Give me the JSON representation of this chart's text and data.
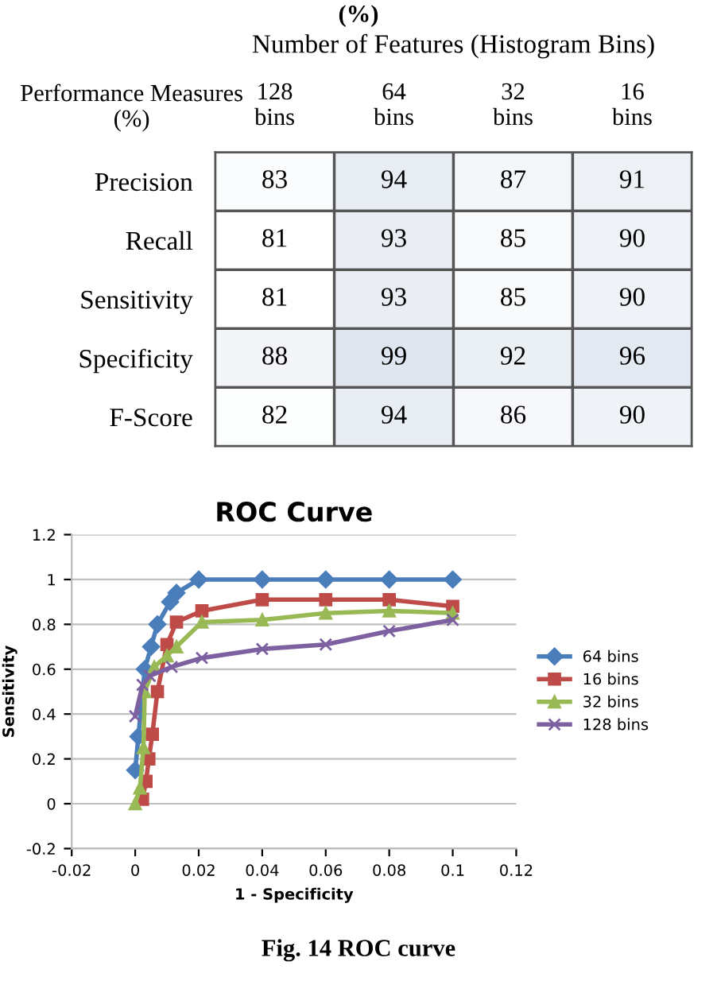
{
  "chart_data": [
    {
      "type": "heatmap",
      "title": "Number of Features (Histogram Bins)",
      "ylabel": "Performance Measures\n(%)",
      "categories": [
        "128\nbins",
        "64\nbins",
        "32\nbins",
        "16\nbins"
      ],
      "y_categories": [
        "Precision",
        "Recall",
        "Sensitivity",
        "Specificity",
        "F-Score"
      ],
      "cells": [
        [
          83,
          94,
          87,
          91
        ],
        [
          81,
          93,
          85,
          90
        ],
        [
          81,
          93,
          85,
          90
        ],
        [
          88,
          99,
          92,
          96
        ],
        [
          82,
          94,
          86,
          90
        ]
      ],
      "data_labels": true,
      "annotations": [
        "(%)"
      ]
    },
    {
      "type": "line",
      "title": "ROC Curve",
      "xlabel": "1 - Specificity",
      "ylabel": "Sensitivity",
      "xlim": [
        -0.02,
        0.12
      ],
      "xticks": [
        -0.02,
        0,
        0.02,
        0.04,
        0.06,
        0.08,
        0.1,
        0.12
      ],
      "ylim": [
        -0.2,
        1.2
      ],
      "yticks": [
        -0.2,
        0,
        0.2,
        0.4,
        0.6,
        0.8,
        1,
        1.2
      ],
      "grid": "y",
      "legend": "right",
      "series": [
        {
          "name": "64 bins",
          "color": "#4a7ebb",
          "marker": "diamond",
          "x": [
            0,
            0.001,
            0.003,
            0.005,
            0.007,
            0.011,
            0.013,
            0.02,
            0.04,
            0.06,
            0.08,
            0.1
          ],
          "values": [
            0.15,
            0.3,
            0.6,
            0.7,
            0.8,
            0.9,
            0.94,
            1,
            1,
            1,
            1,
            1
          ]
        },
        {
          "name": "16 bins",
          "color": "#be4b48",
          "marker": "square",
          "x": [
            0.0023,
            0.0034,
            0.0043,
            0.0054,
            0.007,
            0.01,
            0.013,
            0.021,
            0.04,
            0.06,
            0.08,
            0.1
          ],
          "values": [
            0.02,
            0.1,
            0.2,
            0.31,
            0.5,
            0.71,
            0.81,
            0.86,
            0.91,
            0.91,
            0.91,
            0.88
          ]
        },
        {
          "name": "32 bins",
          "color": "#98b954",
          "marker": "triangle",
          "x": [
            0,
            0.0015,
            0.0026,
            0.003,
            0.006,
            0.01,
            0.013,
            0.021,
            0.04,
            0.06,
            0.08,
            0.1
          ],
          "values": [
            0,
            0.07,
            0.25,
            0.5,
            0.61,
            0.66,
            0.7,
            0.81,
            0.82,
            0.85,
            0.86,
            0.85
          ]
        },
        {
          "name": "128 bins",
          "color": "#7d60a0",
          "marker": "cross",
          "x": [
            0,
            0.0023,
            0.0046,
            0.0115,
            0.021,
            0.04,
            0.06,
            0.08,
            0.1
          ],
          "values": [
            0.39,
            0.53,
            0.57,
            0.61,
            0.65,
            0.69,
            0.71,
            0.77,
            0.82
          ]
        }
      ],
      "annotations": [
        "Fig. 14 ROC curve"
      ]
    }
  ]
}
